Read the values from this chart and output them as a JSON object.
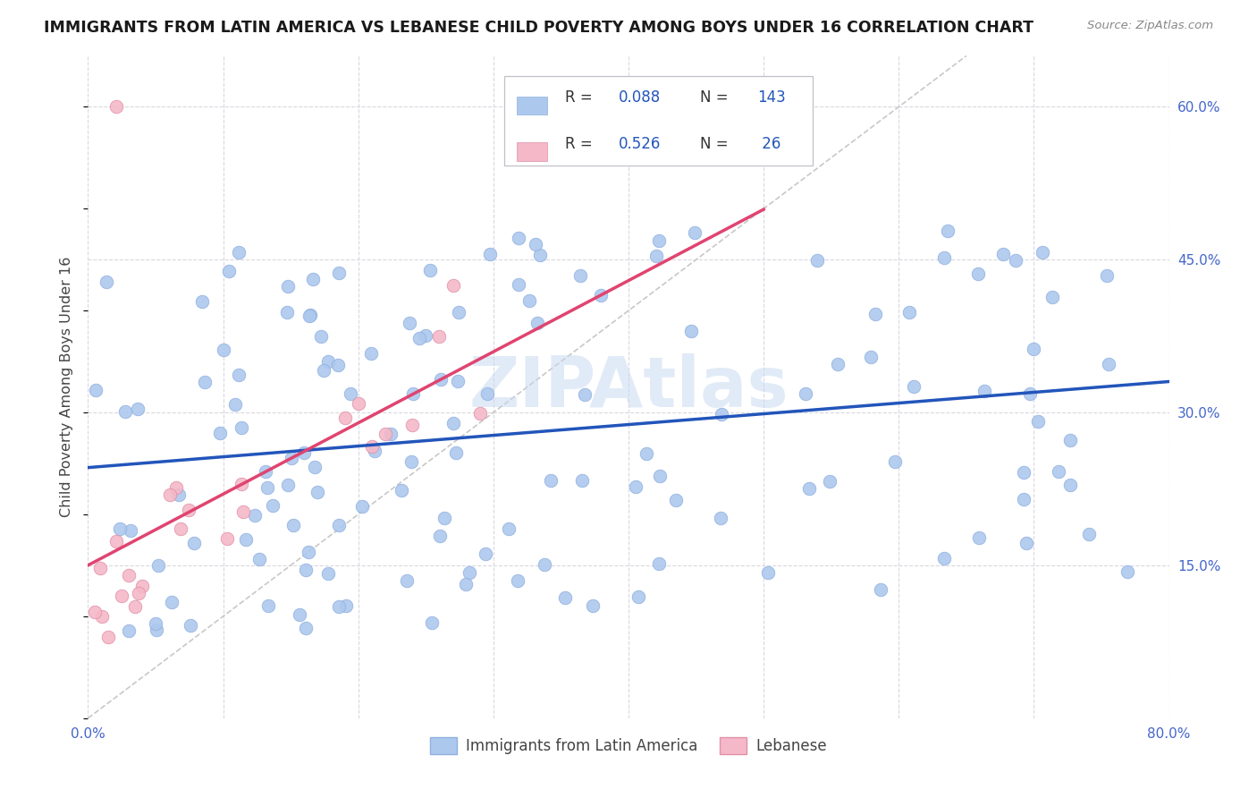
{
  "title": "IMMIGRANTS FROM LATIN AMERICA VS LEBANESE CHILD POVERTY AMONG BOYS UNDER 16 CORRELATION CHART",
  "source": "Source: ZipAtlas.com",
  "ylabel": "Child Poverty Among Boys Under 16",
  "xlim": [
    0.0,
    0.8
  ],
  "ylim": [
    0.0,
    0.65
  ],
  "blue_color": "#adc8ed",
  "blue_edge_color": "#90b0e0",
  "pink_color": "#f4b8c8",
  "pink_edge_color": "#e090a8",
  "blue_line_color": "#2255bb",
  "pink_line_color": "#e04470",
  "diagonal_color": "#c8c8c8",
  "grid_color": "#d8d8e0",
  "watermark": "ZIPAtlas",
  "watermark_color": "#c5d8f0",
  "title_color": "#1a1a1a",
  "source_color": "#888888",
  "ylabel_color": "#444444",
  "tick_color": "#4466cc",
  "legend_edge_color": "#c0c0c8",
  "r1_color": "#2255bb",
  "n1_color": "#2255bb",
  "r2_color": "#2255bb",
  "n2_color": "#2255bb"
}
